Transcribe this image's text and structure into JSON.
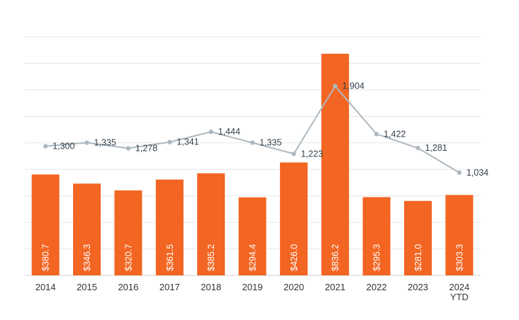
{
  "chart_data": {
    "type": "bar",
    "title": "",
    "xlabel": "",
    "ylabel": "",
    "categories": [
      "2014",
      "2015",
      "2016",
      "2017",
      "2018",
      "2019",
      "2020",
      "2021",
      "2022",
      "2023",
      "2024\nYTD"
    ],
    "series": [
      {
        "type": "bar",
        "values": [
          380.7,
          346.3,
          320.7,
          361.5,
          385.2,
          294.4,
          426.0,
          836.2,
          295.3,
          281.0,
          303.3
        ],
        "labels": [
          "$380.7",
          "$346.3",
          "$320.7",
          "$361.5",
          "$385.2",
          "$294.4",
          "$426.0",
          "$836.2",
          "$295.3",
          "$281.0",
          "$303.3"
        ],
        "color": "#f26522",
        "ylim": [
          0,
          900
        ]
      },
      {
        "type": "line",
        "values": [
          1300,
          1335,
          1278,
          1341,
          1444,
          1335,
          1223,
          1904,
          1422,
          1281,
          1034
        ],
        "labels": [
          "1,300",
          "1,335",
          "1,278",
          "1,341",
          "1,444",
          "1,335",
          "1,223",
          "1,904",
          "1,422",
          "1,281",
          "1,034"
        ],
        "color": "#aeb8bf",
        "ylim": [
          0,
          2400
        ]
      }
    ],
    "grid": true,
    "legend": "none"
  }
}
